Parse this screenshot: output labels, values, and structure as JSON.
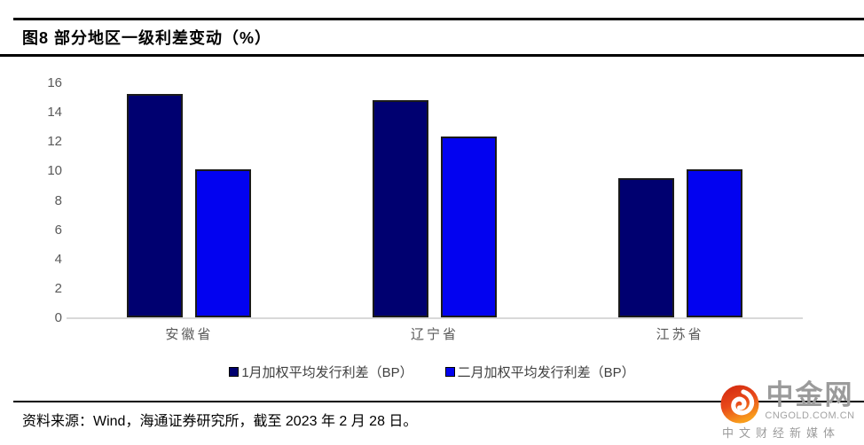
{
  "figure": {
    "title": "图8  部分地区一级利差变动（%）"
  },
  "chart_data": {
    "type": "bar",
    "title": "部分地区一级利差变动（%）",
    "categories": [
      "安徽省",
      "辽宁省",
      "江苏省"
    ],
    "series": [
      {
        "name": "1月加权平均发行利差（BP）",
        "color": "#000070",
        "values": [
          15.2,
          14.8,
          9.5
        ]
      },
      {
        "name": "二月加权平均发行利差（BP）",
        "color": "#0202f0",
        "values": [
          10.1,
          12.3,
          10.1
        ]
      }
    ],
    "ylim": [
      0,
      16
    ],
    "yticks": [
      0,
      2,
      4,
      6,
      8,
      10,
      12,
      14,
      16
    ],
    "xlabel": "",
    "ylabel": "",
    "grid": false,
    "legend_position": "bottom",
    "bar_border_color": "#1a1a1a",
    "baseline_color": "#d9d9d9"
  },
  "footer": {
    "source": "资料来源：Wind，海通证券研究所，截至 2023 年 2 月 28 日。"
  },
  "watermark": {
    "brand": "中金网",
    "domain": "CNGOLD.COM.CN",
    "tagline": "中文财经新媒体"
  },
  "colors": {
    "rule": "#000000",
    "axis_text": "#595959",
    "legend_text": "#404040",
    "logo_gray": "#9b9b9b",
    "logo_red": "#de2e10",
    "logo_orange": "#f89c1c"
  }
}
